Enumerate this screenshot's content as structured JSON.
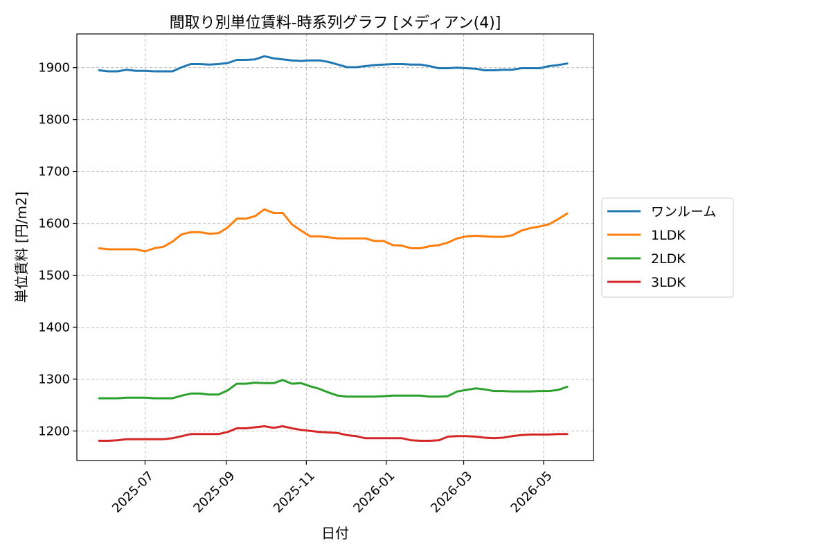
{
  "chart_data": {
    "type": "line",
    "title": "間取り別単位賃料-時系列グラフ [メディアン(4)]",
    "xlabel": "日付",
    "ylabel": "単位賃料 [円/m2]",
    "ylim": [
      1143,
      1965
    ],
    "xlim": [
      "2025-05-10",
      "2026-06-08"
    ],
    "yticks": [
      1200,
      1300,
      1400,
      1500,
      1600,
      1700,
      1800,
      1900
    ],
    "xticks": [
      "2025-07",
      "2025-09",
      "2025-11",
      "2026-01",
      "2026-03",
      "2026-05"
    ],
    "grid": true,
    "legend_position": "center-right",
    "x": [
      "2025-05-27",
      "2025-06-03",
      "2025-06-10",
      "2025-06-17",
      "2025-06-24",
      "2025-07-01",
      "2025-07-08",
      "2025-07-15",
      "2025-07-22",
      "2025-07-29",
      "2025-08-05",
      "2025-08-12",
      "2025-08-19",
      "2025-08-26",
      "2025-09-02",
      "2025-09-09",
      "2025-09-16",
      "2025-09-23",
      "2025-09-30",
      "2025-10-07",
      "2025-10-14",
      "2025-10-21",
      "2025-10-28",
      "2025-11-04",
      "2025-11-11",
      "2025-11-18",
      "2025-11-25",
      "2025-12-02",
      "2025-12-09",
      "2025-12-16",
      "2025-12-23",
      "2025-12-30",
      "2026-01-06",
      "2026-01-13",
      "2026-01-20",
      "2026-01-27",
      "2026-02-03",
      "2026-02-10",
      "2026-02-17",
      "2026-02-24",
      "2026-03-03",
      "2026-03-10",
      "2026-03-17",
      "2026-03-24",
      "2026-03-31",
      "2026-04-07",
      "2026-04-14",
      "2026-04-21",
      "2026-04-28",
      "2026-05-05",
      "2026-05-12",
      "2026-05-19"
    ],
    "series": [
      {
        "name": "ワンルーム",
        "color": "#1f77b4",
        "values": [
          1895,
          1893,
          1893,
          1896,
          1894,
          1894,
          1893,
          1893,
          1893,
          1901,
          1907,
          1907,
          1906,
          1907,
          1909,
          1915,
          1915,
          1916,
          1922,
          1918,
          1916,
          1914,
          1913,
          1914,
          1914,
          1911,
          1906,
          1901,
          1901,
          1903,
          1905,
          1906,
          1907,
          1907,
          1906,
          1906,
          1903,
          1899,
          1899,
          1900,
          1899,
          1898,
          1895,
          1895,
          1896,
          1896,
          1899,
          1899,
          1899,
          1903,
          1905,
          1908
        ]
      },
      {
        "name": "1LDK",
        "color": "#ff7f0e",
        "values": [
          1552,
          1550,
          1550,
          1550,
          1550,
          1546,
          1552,
          1555,
          1565,
          1579,
          1583,
          1583,
          1580,
          1581,
          1592,
          1609,
          1609,
          1614,
          1627,
          1620,
          1620,
          1598,
          1586,
          1575,
          1575,
          1573,
          1571,
          1571,
          1571,
          1571,
          1566,
          1566,
          1558,
          1557,
          1552,
          1552,
          1556,
          1558,
          1563,
          1571,
          1575,
          1576,
          1575,
          1574,
          1574,
          1577,
          1586,
          1591,
          1594,
          1598,
          1608,
          1619
        ]
      },
      {
        "name": "2LDK",
        "color": "#2ca02c",
        "values": [
          1263,
          1263,
          1263,
          1264,
          1264,
          1264,
          1263,
          1263,
          1263,
          1268,
          1272,
          1272,
          1270,
          1270,
          1278,
          1291,
          1291,
          1293,
          1292,
          1292,
          1298,
          1291,
          1292,
          1286,
          1281,
          1274,
          1268,
          1266,
          1266,
          1266,
          1266,
          1267,
          1268,
          1268,
          1268,
          1268,
          1266,
          1266,
          1267,
          1276,
          1279,
          1282,
          1280,
          1277,
          1277,
          1276,
          1276,
          1276,
          1277,
          1277,
          1279,
          1285
        ]
      },
      {
        "name": "3LDK",
        "color": "#d62728",
        "values": [
          1181,
          1181,
          1182,
          1184,
          1184,
          1184,
          1184,
          1184,
          1186,
          1190,
          1194,
          1194,
          1194,
          1194,
          1198,
          1205,
          1205,
          1207,
          1209,
          1206,
          1209,
          1205,
          1202,
          1200,
          1198,
          1197,
          1196,
          1192,
          1190,
          1186,
          1186,
          1186,
          1186,
          1186,
          1182,
          1181,
          1181,
          1182,
          1189,
          1190,
          1190,
          1189,
          1187,
          1186,
          1187,
          1190,
          1192,
          1193,
          1193,
          1193,
          1194,
          1194
        ]
      }
    ]
  }
}
